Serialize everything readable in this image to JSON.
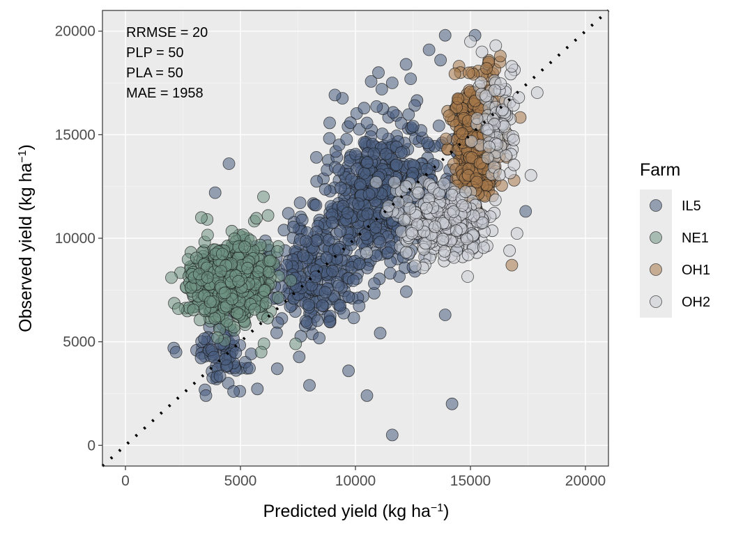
{
  "chart_data": {
    "type": "scatter",
    "xlabel": "Predicted yield (kg ha⁻¹)",
    "ylabel": "Observed yield (kg ha⁻¹)",
    "xlabel_main": "Predicted yield (kg ha",
    "ylabel_main": "Observed yield (kg ha",
    "unit_sup": "−1",
    "unit_close": ")",
    "xlim": [
      -1000,
      21000
    ],
    "ylim": [
      -1000,
      21000
    ],
    "x_ticks": [
      0,
      5000,
      10000,
      15000,
      20000
    ],
    "y_ticks": [
      0,
      5000,
      10000,
      15000,
      20000
    ],
    "x_tick_labels": [
      "0",
      "5000",
      "10000",
      "15000",
      "20000"
    ],
    "y_tick_labels": [
      "0",
      "5000",
      "10000",
      "15000",
      "20000"
    ],
    "grid": true,
    "annotations": [
      "RRMSE = 20",
      "PLP = 50",
      "PLA = 50",
      "MAE = 1958"
    ],
    "reference_line": {
      "type": "1:1",
      "style": "dotted",
      "color": "#000000"
    },
    "legend": {
      "title": "Farm",
      "placement": "right"
    },
    "series": [
      {
        "name": "IL5",
        "color": "#4a5f82",
        "clusters": [
          {
            "cx": 11200,
            "cy": 12200,
            "sx": 1900,
            "sy": 2300,
            "n": 520
          },
          {
            "cx": 8200,
            "cy": 8000,
            "sx": 1500,
            "sy": 1800,
            "n": 220
          },
          {
            "cx": 4200,
            "cy": 4500,
            "sx": 900,
            "sy": 1000,
            "n": 70
          }
        ],
        "points": [
          [
            4500,
            13600
          ],
          [
            3900,
            12200
          ],
          [
            11000,
            18000
          ],
          [
            12200,
            18400
          ],
          [
            13200,
            19100
          ],
          [
            13900,
            19800
          ],
          [
            15200,
            19800
          ],
          [
            13700,
            18600
          ],
          [
            12400,
            17700
          ],
          [
            11600,
            17500
          ],
          [
            17400,
            11300
          ],
          [
            9700,
            3600
          ],
          [
            8000,
            2900
          ],
          [
            10500,
            2400
          ],
          [
            11600,
            500
          ],
          [
            14200,
            2000
          ],
          [
            6600,
            3700
          ],
          [
            4700,
            2600
          ],
          [
            3500,
            2400
          ],
          [
            2100,
            4700
          ],
          [
            2200,
            4500
          ],
          [
            13900,
            6300
          ],
          [
            12900,
            10000
          ],
          [
            12500,
            8600
          ]
        ]
      },
      {
        "name": "NE1",
        "color": "#6f9484",
        "clusters": [
          {
            "cx": 4600,
            "cy": 7900,
            "sx": 1100,
            "sy": 1200,
            "n": 700
          }
        ],
        "points": [
          [
            2300,
            6600
          ],
          [
            2000,
            8100
          ],
          [
            6000,
            12000
          ],
          [
            6200,
            11100
          ],
          [
            3300,
            11000
          ],
          [
            7400,
            4900
          ],
          [
            5900,
            4500
          ],
          [
            4000,
            5200
          ]
        ]
      },
      {
        "name": "OH1",
        "color": "#a6784b",
        "clusters": [
          {
            "cx": 15300,
            "cy": 14800,
            "sx": 650,
            "sy": 1700,
            "n": 560
          }
        ],
        "points": [
          [
            16800,
            8700
          ],
          [
            16300,
            18800
          ],
          [
            15700,
            18200
          ],
          [
            16900,
            12800
          ],
          [
            14200,
            11200
          ]
        ]
      },
      {
        "name": "OH2",
        "color": "#c8ccd3",
        "clusters": [
          {
            "cx": 13800,
            "cy": 10700,
            "sx": 1300,
            "sy": 1100,
            "n": 300
          },
          {
            "cx": 16200,
            "cy": 15600,
            "sx": 600,
            "sy": 1500,
            "n": 90
          }
        ],
        "points": [
          [
            15000,
            19500
          ],
          [
            15500,
            19000
          ],
          [
            16100,
            19300
          ],
          [
            16800,
            18300
          ],
          [
            17100,
            16800
          ],
          [
            16700,
            9400
          ],
          [
            14900,
            9200
          ],
          [
            10900,
            12700
          ],
          [
            11700,
            12700
          ],
          [
            12200,
            12500
          ]
        ]
      }
    ]
  }
}
